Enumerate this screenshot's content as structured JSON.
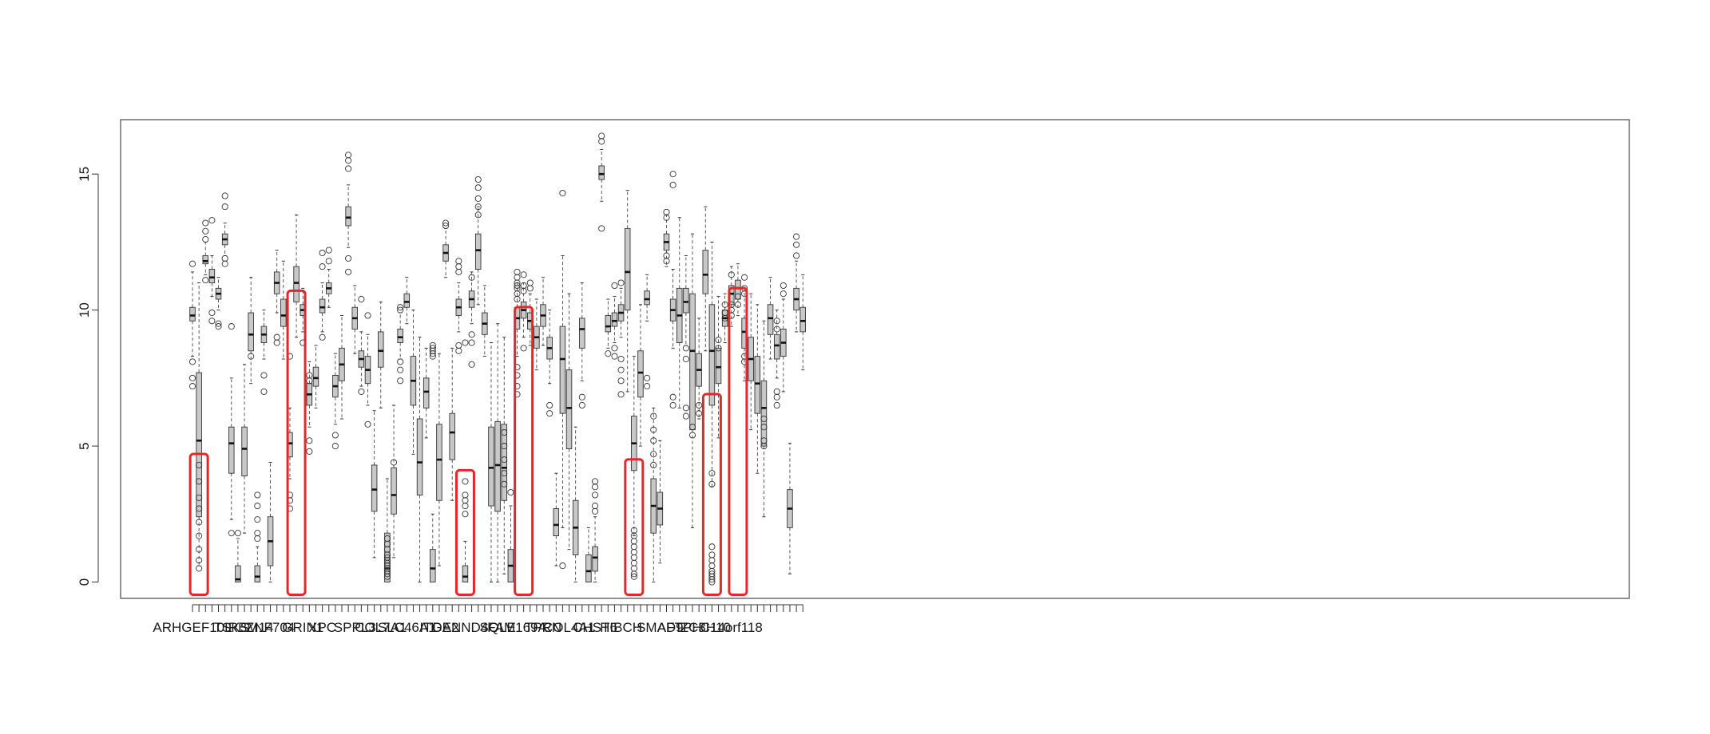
{
  "chart_data": {
    "type": "boxplot",
    "title": "",
    "xlabel": "",
    "ylabel": "",
    "ylim": [
      -0.6,
      17
    ],
    "y_ticks": [
      0,
      5,
      10,
      15
    ],
    "x_tick_labels": [
      "ARHGEF10L",
      "TSKS",
      "RBM14",
      "ZNF704",
      "GRIN1",
      "XPC",
      "SPPL3",
      "COL7A1",
      "SLC46A1",
      "ITGA2",
      "DENND4C",
      "SQLE",
      "FAM169A",
      "TPRN",
      "COL4A1",
      "CHST6",
      "HIBCH",
      "SMAD9",
      "AFTPH",
      "ZC3H10",
      "C14orf118"
    ],
    "label_box_starts": [
      0,
      6,
      9,
      12,
      17,
      20,
      25,
      29,
      33,
      38,
      42,
      47,
      50,
      54,
      58,
      62,
      66,
      72,
      75,
      79,
      83
    ],
    "box_count": 95,
    "box_color": "#c8c8c8",
    "highlight_color": "#e8262a",
    "highlighted_boxes": [
      1,
      16,
      42,
      51,
      68,
      80,
      84
    ],
    "boxes": [
      {
        "q1": 9.6,
        "med": 9.8,
        "q3": 10.1,
        "lo": 8.3,
        "hi": 11.4,
        "out": [
          11.7,
          7.2,
          7.5,
          8.1
        ]
      },
      {
        "q1": 2.4,
        "med": 5.2,
        "q3": 7.7,
        "lo": 0.6,
        "hi": 11.0,
        "out": [
          4.3,
          3.7,
          3.1,
          2.7,
          2.2,
          1.7,
          1.2,
          0.8,
          0.5
        ]
      },
      {
        "q1": 11.7,
        "med": 11.8,
        "q3": 12.0,
        "lo": 11.3,
        "hi": 12.5,
        "out": [
          13.2,
          12.9,
          12.6,
          11.1
        ]
      },
      {
        "q1": 11.0,
        "med": 11.2,
        "q3": 11.5,
        "lo": 10.5,
        "hi": 12.0,
        "out": [
          13.3,
          9.6,
          9.9
        ]
      },
      {
        "q1": 10.4,
        "med": 10.6,
        "q3": 10.8,
        "lo": 10.0,
        "hi": 11.2,
        "out": [
          9.5,
          9.4
        ]
      },
      {
        "q1": 12.4,
        "med": 12.6,
        "q3": 12.8,
        "lo": 12.0,
        "hi": 13.2,
        "out": [
          14.2,
          13.8,
          11.7,
          11.9
        ]
      },
      {
        "q1": 4.0,
        "med": 5.1,
        "q3": 5.7,
        "lo": 2.3,
        "hi": 7.5,
        "out": [
          9.4,
          1.8
        ]
      },
      {
        "q1": 0.0,
        "med": 0.1,
        "q3": 0.6,
        "lo": 0.0,
        "hi": 1.6,
        "out": [
          1.8
        ]
      },
      {
        "q1": 3.9,
        "med": 4.9,
        "q3": 5.7,
        "lo": 1.8,
        "hi": 8.0,
        "out": []
      },
      {
        "q1": 8.5,
        "med": 9.1,
        "q3": 9.9,
        "lo": 7.3,
        "hi": 11.2,
        "out": [
          8.3
        ]
      },
      {
        "q1": 0.0,
        "med": 0.2,
        "q3": 0.6,
        "lo": 0.0,
        "hi": 1.3,
        "out": [
          3.2,
          2.8,
          2.3,
          1.8,
          1.6
        ]
      },
      {
        "q1": 8.8,
        "med": 9.1,
        "q3": 9.4,
        "lo": 8.2,
        "hi": 10.0,
        "out": [
          7.6,
          7.0
        ]
      },
      {
        "q1": 0.6,
        "med": 1.5,
        "q3": 2.4,
        "lo": 0.0,
        "hi": 4.4,
        "out": []
      },
      {
        "q1": 10.6,
        "med": 11.0,
        "q3": 11.4,
        "lo": 9.9,
        "hi": 12.2,
        "out": [
          8.8,
          9.0
        ]
      },
      {
        "q1": 9.4,
        "med": 9.8,
        "q3": 10.4,
        "lo": 8.2,
        "hi": 11.8,
        "out": []
      },
      {
        "q1": 4.6,
        "med": 5.1,
        "q3": 5.5,
        "lo": 3.8,
        "hi": 6.4,
        "out": [
          3.2,
          3.0,
          2.7,
          8.3
        ]
      },
      {
        "q1": 10.3,
        "med": 11.0,
        "q3": 11.6,
        "lo": 9.0,
        "hi": 13.5,
        "out": []
      },
      {
        "q1": 9.8,
        "med": 10.0,
        "q3": 10.2,
        "lo": 9.2,
        "hi": 10.8,
        "out": [
          8.8
        ]
      },
      {
        "q1": 6.5,
        "med": 6.9,
        "q3": 7.3,
        "lo": 5.7,
        "hi": 8.1,
        "out": [
          7.6,
          7.4,
          5.2,
          4.8
        ]
      },
      {
        "q1": 7.2,
        "med": 7.5,
        "q3": 7.9,
        "lo": 6.4,
        "hi": 8.7,
        "out": []
      },
      {
        "q1": 9.9,
        "med": 10.1,
        "q3": 10.4,
        "lo": 9.2,
        "hi": 11.0,
        "out": [
          11.6,
          12.1,
          9.0
        ]
      },
      {
        "q1": 10.6,
        "med": 10.8,
        "q3": 11.0,
        "lo": 10.1,
        "hi": 11.5,
        "out": [
          12.2,
          11.8
        ]
      },
      {
        "q1": 6.8,
        "med": 7.2,
        "q3": 7.6,
        "lo": 5.8,
        "hi": 8.4,
        "out": [
          5.4,
          5.0
        ]
      },
      {
        "q1": 7.4,
        "med": 8.0,
        "q3": 8.6,
        "lo": 6.0,
        "hi": 9.8,
        "out": []
      },
      {
        "q1": 13.1,
        "med": 13.4,
        "q3": 13.8,
        "lo": 12.3,
        "hi": 14.6,
        "out": [
          15.7,
          15.5,
          15.2,
          11.9,
          11.4
        ]
      },
      {
        "q1": 9.3,
        "med": 9.7,
        "q3": 10.1,
        "lo": 8.4,
        "hi": 10.9,
        "out": []
      },
      {
        "q1": 7.9,
        "med": 8.2,
        "q3": 8.5,
        "lo": 7.2,
        "hi": 9.2,
        "out": [
          10.4,
          7.0
        ]
      },
      {
        "q1": 7.3,
        "med": 7.8,
        "q3": 8.3,
        "lo": 6.5,
        "hi": 9.1,
        "out": [
          9.8,
          5.8
        ]
      },
      {
        "q1": 2.6,
        "med": 3.4,
        "q3": 4.3,
        "lo": 0.9,
        "hi": 6.3,
        "out": []
      },
      {
        "q1": 7.9,
        "med": 8.5,
        "q3": 9.2,
        "lo": 6.4,
        "hi": 10.3,
        "out": []
      },
      {
        "q1": 0.0,
        "med": 0.5,
        "q3": 1.8,
        "lo": 0.0,
        "hi": 3.8,
        "out": [
          1.6,
          1.4,
          1.2,
          1.0,
          0.9,
          0.8,
          0.7,
          0.6,
          0.5,
          0.4,
          0.3,
          0.2
        ]
      },
      {
        "q1": 2.5,
        "med": 3.2,
        "q3": 4.2,
        "lo": 0.9,
        "hi": 6.5,
        "out": [
          4.4
        ]
      },
      {
        "q1": 8.8,
        "med": 9.0,
        "q3": 9.3,
        "lo": 8.2,
        "hi": 9.9,
        "out": [
          10.1,
          10.0,
          8.1,
          7.8,
          7.4
        ]
      },
      {
        "q1": 10.1,
        "med": 10.3,
        "q3": 10.6,
        "lo": 9.5,
        "hi": 11.2,
        "out": []
      },
      {
        "q1": 6.5,
        "med": 7.4,
        "q3": 8.3,
        "lo": 4.7,
        "hi": 10.0,
        "out": []
      },
      {
        "q1": 3.2,
        "med": 4.4,
        "q3": 6.0,
        "lo": 0.0,
        "hi": 9.0,
        "out": []
      },
      {
        "q1": 6.4,
        "med": 7.0,
        "q3": 7.5,
        "lo": 5.3,
        "hi": 8.6,
        "out": []
      },
      {
        "q1": 0.0,
        "med": 0.5,
        "q3": 1.2,
        "lo": 0.0,
        "hi": 2.5,
        "out": [
          8.6,
          8.7,
          8.5,
          8.4,
          8.3
        ]
      },
      {
        "q1": 3.0,
        "med": 4.5,
        "q3": 5.8,
        "lo": 0.6,
        "hi": 8.4,
        "out": []
      },
      {
        "q1": 11.8,
        "med": 12.1,
        "q3": 12.4,
        "lo": 11.2,
        "hi": 13.0,
        "out": [
          13.2,
          13.1
        ]
      },
      {
        "q1": 4.5,
        "med": 5.5,
        "q3": 6.2,
        "lo": 3.0,
        "hi": 8.6,
        "out": []
      },
      {
        "q1": 9.8,
        "med": 10.1,
        "q3": 10.4,
        "lo": 9.2,
        "hi": 11.0,
        "out": [
          11.8,
          11.6,
          11.4,
          8.7,
          8.5
        ]
      },
      {
        "q1": 0.0,
        "med": 0.2,
        "q3": 0.6,
        "lo": 0.0,
        "hi": 1.5,
        "out": [
          3.7,
          3.2,
          3.0,
          2.8,
          2.5,
          8.8
        ]
      },
      {
        "q1": 10.1,
        "med": 10.4,
        "q3": 10.7,
        "lo": 9.5,
        "hi": 11.4,
        "out": [
          11.2,
          9.1,
          8.8,
          8.0
        ]
      },
      {
        "q1": 11.5,
        "med": 12.2,
        "q3": 12.8,
        "lo": 10.2,
        "hi": 13.8,
        "out": [
          14.8,
          14.5,
          14.1,
          13.8,
          13.5
        ]
      },
      {
        "q1": 9.1,
        "med": 9.5,
        "q3": 9.9,
        "lo": 8.3,
        "hi": 10.9,
        "out": []
      },
      {
        "q1": 2.8,
        "med": 4.2,
        "q3": 5.7,
        "lo": 0.0,
        "hi": 8.8,
        "out": []
      },
      {
        "q1": 2.6,
        "med": 4.3,
        "q3": 5.9,
        "lo": 0.0,
        "hi": 9.5,
        "out": []
      },
      {
        "q1": 3.0,
        "med": 4.2,
        "q3": 5.8,
        "lo": 0.3,
        "hi": 9.0,
        "out": [
          5.5,
          5.0,
          4.5,
          4.0,
          3.6
        ]
      },
      {
        "q1": 0.0,
        "med": 0.6,
        "q3": 1.2,
        "lo": 0.0,
        "hi": 2.8,
        "out": [
          3.3
        ]
      },
      {
        "q1": 9.3,
        "med": 9.7,
        "q3": 10.1,
        "lo": 8.3,
        "hi": 11.0,
        "out": [
          11.4,
          11.2,
          11.0,
          10.9,
          10.8,
          10.6,
          10.4,
          7.9,
          7.6,
          7.2,
          6.9
        ]
      },
      {
        "q1": 9.7,
        "med": 10.0,
        "q3": 10.3,
        "lo": 9.0,
        "hi": 11.0,
        "out": [
          11.3,
          10.9,
          10.7,
          8.6
        ]
      },
      {
        "q1": 9.3,
        "med": 9.6,
        "q3": 9.9,
        "lo": 8.7,
        "hi": 10.6,
        "out": [
          11.0,
          10.8
        ]
      },
      {
        "q1": 8.6,
        "med": 9.0,
        "q3": 9.4,
        "lo": 7.8,
        "hi": 10.4,
        "out": []
      },
      {
        "q1": 9.4,
        "med": 9.8,
        "q3": 10.2,
        "lo": 8.7,
        "hi": 11.2,
        "out": []
      },
      {
        "q1": 8.2,
        "med": 8.6,
        "q3": 9.0,
        "lo": 7.3,
        "hi": 10.0,
        "out": [
          6.5,
          6.2
        ]
      },
      {
        "q1": 1.7,
        "med": 2.1,
        "q3": 2.7,
        "lo": 0.6,
        "hi": 4.0,
        "out": []
      },
      {
        "q1": 6.2,
        "med": 8.2,
        "q3": 9.4,
        "lo": 2.0,
        "hi": 12.0,
        "out": [
          14.3,
          0.6
        ]
      },
      {
        "q1": 4.9,
        "med": 6.4,
        "q3": 7.8,
        "lo": 1.2,
        "hi": 10.6,
        "out": []
      },
      {
        "q1": 1.0,
        "med": 2.0,
        "q3": 3.0,
        "lo": 0.0,
        "hi": 5.7,
        "out": []
      },
      {
        "q1": 8.6,
        "med": 9.3,
        "q3": 9.7,
        "lo": 7.4,
        "hi": 11.0,
        "out": [
          6.8,
          6.5
        ]
      },
      {
        "q1": 0.0,
        "med": 0.4,
        "q3": 1.0,
        "lo": 0.0,
        "hi": 2.0,
        "out": []
      },
      {
        "q1": 0.4,
        "med": 0.9,
        "q3": 1.3,
        "lo": 0.0,
        "hi": 2.4,
        "out": [
          3.7,
          3.5,
          3.2,
          2.8,
          2.6
        ]
      },
      {
        "q1": 14.8,
        "med": 15.0,
        "q3": 15.3,
        "lo": 14.0,
        "hi": 15.9,
        "out": [
          16.4,
          16.2,
          13.0
        ]
      },
      {
        "q1": 9.2,
        "med": 9.4,
        "q3": 9.8,
        "lo": 8.6,
        "hi": 10.4,
        "out": [
          8.4
        ]
      },
      {
        "q1": 9.4,
        "med": 9.6,
        "q3": 9.9,
        "lo": 8.8,
        "hi": 10.5,
        "out": [
          10.9,
          8.6,
          8.3
        ]
      },
      {
        "q1": 9.6,
        "med": 9.9,
        "q3": 10.2,
        "lo": 9.0,
        "hi": 10.8,
        "out": [
          11.0,
          8.2,
          7.8,
          7.4,
          6.9
        ]
      },
      {
        "q1": 10.0,
        "med": 11.4,
        "q3": 13.0,
        "lo": 7.0,
        "hi": 14.4,
        "out": []
      },
      {
        "q1": 4.1,
        "med": 5.1,
        "q3": 6.1,
        "lo": 1.7,
        "hi": 8.3,
        "out": [
          1.9,
          1.7,
          1.5,
          1.3,
          1.1,
          0.9,
          0.7,
          0.5,
          0.3,
          0.2
        ]
      },
      {
        "q1": 6.8,
        "med": 7.7,
        "q3": 8.5,
        "lo": 5.0,
        "hi": 10.2,
        "out": []
      },
      {
        "q1": 10.2,
        "med": 10.4,
        "q3": 10.7,
        "lo": 9.6,
        "hi": 11.3,
        "out": [
          7.5,
          7.2
        ]
      },
      {
        "q1": 1.8,
        "med": 2.8,
        "q3": 3.8,
        "lo": 0.0,
        "hi": 6.4,
        "out": [
          6.1,
          5.6,
          5.2,
          4.7,
          4.3
        ]
      },
      {
        "q1": 2.1,
        "med": 2.7,
        "q3": 3.3,
        "lo": 0.7,
        "hi": 5.2,
        "out": []
      },
      {
        "q1": 12.2,
        "med": 12.5,
        "q3": 12.8,
        "lo": 11.6,
        "hi": 13.5,
        "out": [
          13.6,
          13.4,
          12.0,
          11.8
        ]
      },
      {
        "q1": 9.6,
        "med": 10.0,
        "q3": 10.4,
        "lo": 8.6,
        "hi": 11.5,
        "out": [
          15.0,
          14.6,
          6.8,
          6.5
        ]
      },
      {
        "q1": 8.8,
        "med": 9.8,
        "q3": 10.8,
        "lo": 6.4,
        "hi": 13.4,
        "out": []
      },
      {
        "q1": 9.9,
        "med": 10.3,
        "q3": 10.8,
        "lo": 8.7,
        "hi": 12.0,
        "out": [
          8.6,
          8.2,
          6.4,
          6.1
        ]
      },
      {
        "q1": 5.6,
        "med": 8.5,
        "q3": 10.6,
        "lo": 2.0,
        "hi": 12.8,
        "out": [
          5.7,
          5.4
        ]
      },
      {
        "q1": 7.2,
        "med": 7.8,
        "q3": 8.4,
        "lo": 6.0,
        "hi": 9.7,
        "out": [
          6.5,
          6.2
        ]
      },
      {
        "q1": 10.6,
        "med": 11.3,
        "q3": 12.2,
        "lo": 8.5,
        "hi": 13.8,
        "out": []
      },
      {
        "q1": 6.5,
        "med": 8.5,
        "q3": 10.2,
        "lo": 3.5,
        "hi": 12.5,
        "out": [
          4.0,
          3.6,
          1.3,
          1.0,
          0.8,
          0.6,
          0.4,
          0.3,
          0.2,
          0.1,
          0.0
        ]
      },
      {
        "q1": 7.3,
        "med": 7.9,
        "q3": 8.6,
        "lo": 5.3,
        "hi": 10.5,
        "out": [
          8.9,
          8.6
        ]
      },
      {
        "q1": 9.4,
        "med": 9.7,
        "q3": 10.0,
        "lo": 8.8,
        "hi": 10.6,
        "out": [
          10.2,
          9.9,
          9.7
        ]
      },
      {
        "q1": 10.2,
        "med": 10.6,
        "q3": 10.9,
        "lo": 9.4,
        "hi": 11.6,
        "out": [
          11.3,
          10.2,
          10.0,
          9.8
        ]
      },
      {
        "q1": 10.4,
        "med": 10.8,
        "q3": 11.1,
        "lo": 9.8,
        "hi": 11.7,
        "out": [
          10.5,
          10.2
        ]
      },
      {
        "q1": 8.6,
        "med": 9.2,
        "q3": 9.7,
        "lo": 7.4,
        "hi": 10.8,
        "out": [
          11.2,
          10.8,
          10.6,
          8.3,
          8.1
        ]
      },
      {
        "q1": 7.4,
        "med": 8.2,
        "q3": 9.0,
        "lo": 5.6,
        "hi": 10.6,
        "out": []
      },
      {
        "q1": 6.2,
        "med": 7.3,
        "q3": 8.3,
        "lo": 4.0,
        "hi": 10.2,
        "out": []
      },
      {
        "q1": 5.0,
        "med": 6.4,
        "q3": 7.4,
        "lo": 2.4,
        "hi": 9.6,
        "out": [
          6.0,
          5.7,
          5.2,
          5.0
        ]
      },
      {
        "q1": 9.1,
        "med": 9.7,
        "q3": 10.2,
        "lo": 8.2,
        "hi": 11.2,
        "out": []
      },
      {
        "q1": 8.2,
        "med": 8.7,
        "q3": 9.1,
        "lo": 7.5,
        "hi": 10.0,
        "out": [
          9.6,
          9.3,
          7.0,
          6.8,
          6.5
        ]
      },
      {
        "q1": 8.3,
        "med": 8.8,
        "q3": 9.3,
        "lo": 7.0,
        "hi": 10.4,
        "out": [
          10.9,
          10.6
        ]
      },
      {
        "q1": 2.0,
        "med": 2.7,
        "q3": 3.4,
        "lo": 0.3,
        "hi": 5.1,
        "out": []
      },
      {
        "q1": 10.0,
        "med": 10.4,
        "q3": 10.8,
        "lo": 9.2,
        "hi": 11.8,
        "out": [
          12.7,
          12.4,
          12.0
        ]
      },
      {
        "q1": 9.2,
        "med": 9.6,
        "q3": 10.1,
        "lo": 7.8,
        "hi": 11.3,
        "out": []
      }
    ]
  }
}
